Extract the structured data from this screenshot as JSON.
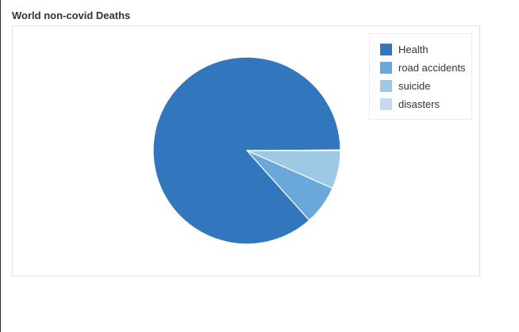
{
  "chart_data": {
    "type": "pie",
    "title": "World non-covid Deaths",
    "categories": [
      "Health",
      "road accidents",
      "suicide",
      "disasters"
    ],
    "values": [
      86.5,
      6.8,
      6.6,
      0.1
    ],
    "colors": [
      "#3277be",
      "#69a8d8",
      "#9ec9e4",
      "#c6d9f1"
    ],
    "legend_position": "top-right"
  }
}
